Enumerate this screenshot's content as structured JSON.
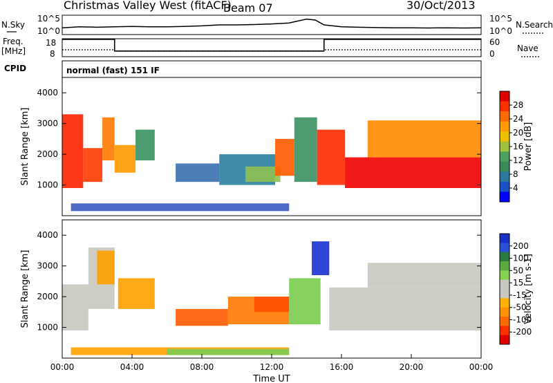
{
  "header": {
    "station": "Christmas Valley West (fitACF)",
    "beam": "Beam 07",
    "date": "30/Oct/2013"
  },
  "noise_panel": {
    "left_label": "N.Sky",
    "left_ticks": [
      "10^5",
      "10^0"
    ],
    "right_ticks": [
      "10^5",
      "10^0"
    ],
    "right_label": "N.Search",
    "series": [
      {
        "legend": "solid",
        "x": [
          0,
          1,
          2,
          3,
          4,
          5,
          6,
          7,
          8,
          9,
          10,
          11,
          12,
          13,
          13.5,
          14,
          14.5,
          15,
          16,
          17,
          18,
          19,
          20,
          21,
          22,
          23,
          24
        ],
        "y": [
          0.35,
          0.4,
          0.38,
          0.4,
          0.42,
          0.4,
          0.4,
          0.42,
          0.45,
          0.5,
          0.5,
          0.52,
          0.55,
          0.6,
          0.7,
          0.8,
          0.75,
          0.5,
          0.4,
          0.38,
          0.36,
          0.35,
          0.35,
          0.34,
          0.35,
          0.34,
          0.35
        ]
      }
    ]
  },
  "freq_panel": {
    "left_label_1": "Freq.",
    "left_label_2": "[MHz]",
    "left_ticks": [
      "18",
      "8"
    ],
    "right_ticks": [
      "60",
      "0"
    ],
    "right_label": "Nave",
    "freq_steps": [
      {
        "start": 0,
        "end": 3,
        "value": 18
      },
      {
        "start": 3,
        "end": 15,
        "value": 11
      },
      {
        "start": 15,
        "end": 24,
        "value": 18
      }
    ],
    "nave_steps": [
      {
        "start": 0,
        "end": 3,
        "value": 25
      },
      {
        "start": 3,
        "end": 15,
        "value": 20
      },
      {
        "start": 15,
        "end": 24,
        "value": 25
      }
    ]
  },
  "cpid": {
    "label": "CPID",
    "value": "normal (fast) 151 IF"
  },
  "chart_data": [
    {
      "type": "heatmap",
      "title": "",
      "ylabel": "Slant Range [km]",
      "xlabel": "",
      "xlim": [
        0,
        24
      ],
      "ylim": [
        0,
        4500
      ],
      "y_ticks": [
        "1000",
        "2000",
        "3000",
        "4000"
      ],
      "colorbar": {
        "label": "Power [dB]",
        "ticks": [
          "28",
          "24",
          "20",
          "16",
          "12",
          "8",
          "4"
        ],
        "colors": [
          "#e00000",
          "#ff3000",
          "#ff6a00",
          "#ff9a00",
          "#f0c000",
          "#a0c040",
          "#4ea060",
          "#3a8a5a",
          "#2a7aa0",
          "#1a50c8",
          "#0000ff"
        ]
      },
      "regions": [
        {
          "x0": 0,
          "x1": 1.2,
          "y0": 900,
          "y1": 3300,
          "color": "#ff2200"
        },
        {
          "x0": 1.2,
          "x1": 2.3,
          "y0": 1100,
          "y1": 2200,
          "color": "#ff3a00"
        },
        {
          "x0": 2.3,
          "x1": 3.0,
          "y0": 1800,
          "y1": 3200,
          "color": "#ff7a00"
        },
        {
          "x0": 3.0,
          "x1": 4.2,
          "y0": 1400,
          "y1": 2300,
          "color": "#ff9a00"
        },
        {
          "x0": 4.2,
          "x1": 5.3,
          "y0": 1800,
          "y1": 2800,
          "color": "#3a9060"
        },
        {
          "x0": 6.5,
          "x1": 9.0,
          "y0": 1100,
          "y1": 1700,
          "color": "#3a70b0"
        },
        {
          "x0": 9.0,
          "x1": 12.2,
          "y0": 1000,
          "y1": 2000,
          "color": "#2a80a0"
        },
        {
          "x0": 10.5,
          "x1": 12.5,
          "y0": 1100,
          "y1": 1600,
          "color": "#90c050"
        },
        {
          "x0": 12.2,
          "x1": 13.3,
          "y0": 1300,
          "y1": 2500,
          "color": "#ff5a00"
        },
        {
          "x0": 13.3,
          "x1": 14.6,
          "y0": 1100,
          "y1": 3200,
          "color": "#3a9060"
        },
        {
          "x0": 14.6,
          "x1": 16.2,
          "y0": 1000,
          "y1": 2800,
          "color": "#ff2a00"
        },
        {
          "x0": 16.2,
          "x1": 24.0,
          "y0": 900,
          "y1": 1900,
          "color": "#f00000"
        },
        {
          "x0": 17.5,
          "x1": 24.0,
          "y0": 1900,
          "y1": 3100,
          "color": "#ff8a00"
        },
        {
          "x0": 0.5,
          "x1": 13.0,
          "y0": 150,
          "y1": 400,
          "color": "#3a5ac0"
        }
      ]
    },
    {
      "type": "heatmap",
      "title": "",
      "ylabel": "Slant Range [km]",
      "xlabel": "Time UT",
      "xlim": [
        0,
        24
      ],
      "ylim": [
        0,
        4500
      ],
      "x_ticks": [
        "00:00",
        "04:00",
        "08:00",
        "12:00",
        "16:00",
        "20:00",
        "00:00"
      ],
      "y_ticks": [
        "1000",
        "2000",
        "3000",
        "4000"
      ],
      "colorbar": {
        "label": "Velocity [m s-1]",
        "ticks": [
          "200",
          "100",
          "50",
          "15",
          "-15",
          "-50",
          "-100",
          "-200"
        ],
        "colors": [
          "#1a30c8",
          "#2a50d8",
          "#2a7a40",
          "#5aaa40",
          "#88d050",
          "#c8c8c0",
          "#c8c8c0",
          "#ffb000",
          "#ff9000",
          "#ff6a00",
          "#ff3000",
          "#e00000"
        ]
      },
      "regions": [
        {
          "x0": 0,
          "x1": 1.5,
          "y0": 900,
          "y1": 2400,
          "color": "#c8c8c0"
        },
        {
          "x0": 1.5,
          "x1": 3.0,
          "y0": 1600,
          "y1": 3600,
          "color": "#c8c8c0"
        },
        {
          "x0": 2.0,
          "x1": 3.0,
          "y0": 2400,
          "y1": 3500,
          "color": "#ffa000"
        },
        {
          "x0": 3.2,
          "x1": 5.3,
          "y0": 1600,
          "y1": 2600,
          "color": "#ffa000"
        },
        {
          "x0": 6.5,
          "x1": 9.5,
          "y0": 1050,
          "y1": 1600,
          "color": "#ff5a00"
        },
        {
          "x0": 9.5,
          "x1": 13.0,
          "y0": 1100,
          "y1": 2000,
          "color": "#ff7a00"
        },
        {
          "x0": 11.0,
          "x1": 13.0,
          "y0": 1500,
          "y1": 2000,
          "color": "#ff5000"
        },
        {
          "x0": 13.0,
          "x1": 14.8,
          "y0": 1100,
          "y1": 2600,
          "color": "#7acc50"
        },
        {
          "x0": 14.3,
          "x1": 15.3,
          "y0": 2700,
          "y1": 3800,
          "color": "#1a30d0"
        },
        {
          "x0": 15.3,
          "x1": 24.0,
          "y0": 900,
          "y1": 2300,
          "color": "#c8c8c0"
        },
        {
          "x0": 17.5,
          "x1": 24.0,
          "y0": 2300,
          "y1": 3100,
          "color": "#c8c8c0"
        },
        {
          "x0": 0.5,
          "x1": 13.0,
          "y0": 100,
          "y1": 350,
          "color": "#ffa000"
        },
        {
          "x0": 6.0,
          "x1": 13.0,
          "y0": 100,
          "y1": 300,
          "color": "#7acc50"
        }
      ]
    }
  ]
}
